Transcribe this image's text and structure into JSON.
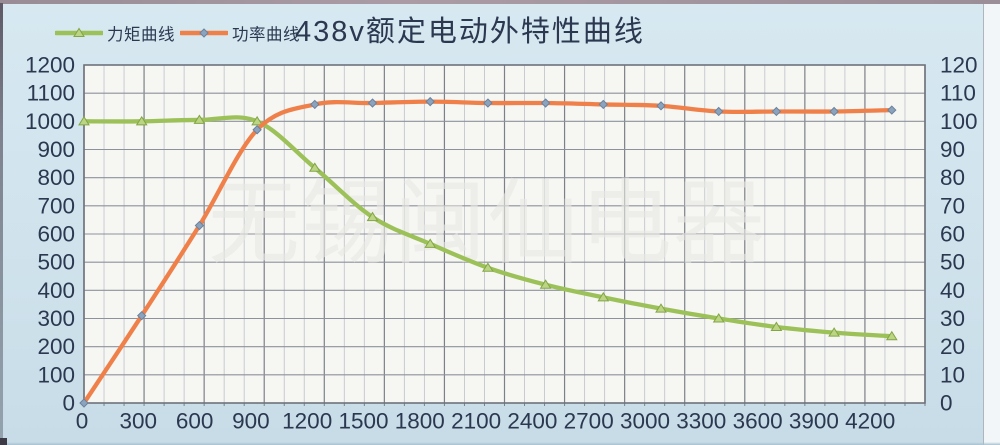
{
  "header": {
    "title": "438v额定电动外特性曲线"
  },
  "watermark_text": "无锡闽仙电器",
  "colors": {
    "page_background": "#d0e3ed",
    "plot_background": "#f6f6f3",
    "grid_minor": "#c3c6cd",
    "grid_major": "#7c8089",
    "grid_horizontal": "#8d919b",
    "plot_border": "#6e727b",
    "text": "#2b3850",
    "watermark": "#e8e8e3",
    "torque_line": "#9cc158",
    "power_line": "#f08049"
  },
  "chart_data": {
    "type": "line",
    "title": "438v额定电动外特性曲线",
    "xlabel": "",
    "ylabel_left": "",
    "ylabel_right": "",
    "grid": true,
    "legend_position": "top-left",
    "x": [
      0,
      300,
      600,
      900,
      1200,
      1500,
      1800,
      2100,
      2400,
      2700,
      3000,
      3300,
      3600,
      3900,
      4200
    ],
    "x_tick_labels": [
      "0",
      "300",
      "600",
      "900",
      "1200",
      "1500",
      "1800",
      "2100",
      "2400",
      "2700",
      "3000",
      "3300",
      "3600",
      "3900",
      "4200"
    ],
    "axes": {
      "x": {
        "min": 0,
        "max": 4200,
        "major_step": 300,
        "minor_step": 100
      },
      "left": {
        "min": 0,
        "max": 1200,
        "step": 100,
        "ticks": [
          0,
          100,
          200,
          300,
          400,
          500,
          600,
          700,
          800,
          900,
          1000,
          1100,
          1200
        ]
      },
      "right": {
        "min": 0,
        "max": 120,
        "step": 10,
        "ticks": [
          0,
          10,
          20,
          30,
          40,
          50,
          60,
          70,
          80,
          90,
          100,
          110,
          120
        ]
      }
    },
    "series": [
      {
        "name": "力矩曲线",
        "axis": "left",
        "marker": "triangle",
        "color": "#9cc158",
        "marker_fill": "#bcd584",
        "marker_edge": "#82a546",
        "values": [
          1000,
          1000,
          1005,
          1000,
          835,
          660,
          565,
          480,
          420,
          375,
          335,
          300,
          270,
          250,
          237
        ]
      },
      {
        "name": "功率曲线",
        "axis": "right",
        "marker": "diamond",
        "color": "#f08049",
        "marker_fill": "#8ba3bd",
        "marker_edge": "#69829f",
        "values": [
          0,
          31,
          63,
          97,
          106,
          106.5,
          107,
          106.5,
          106.5,
          106,
          105.5,
          103.5,
          103.5,
          103.5,
          104
        ]
      }
    ]
  }
}
